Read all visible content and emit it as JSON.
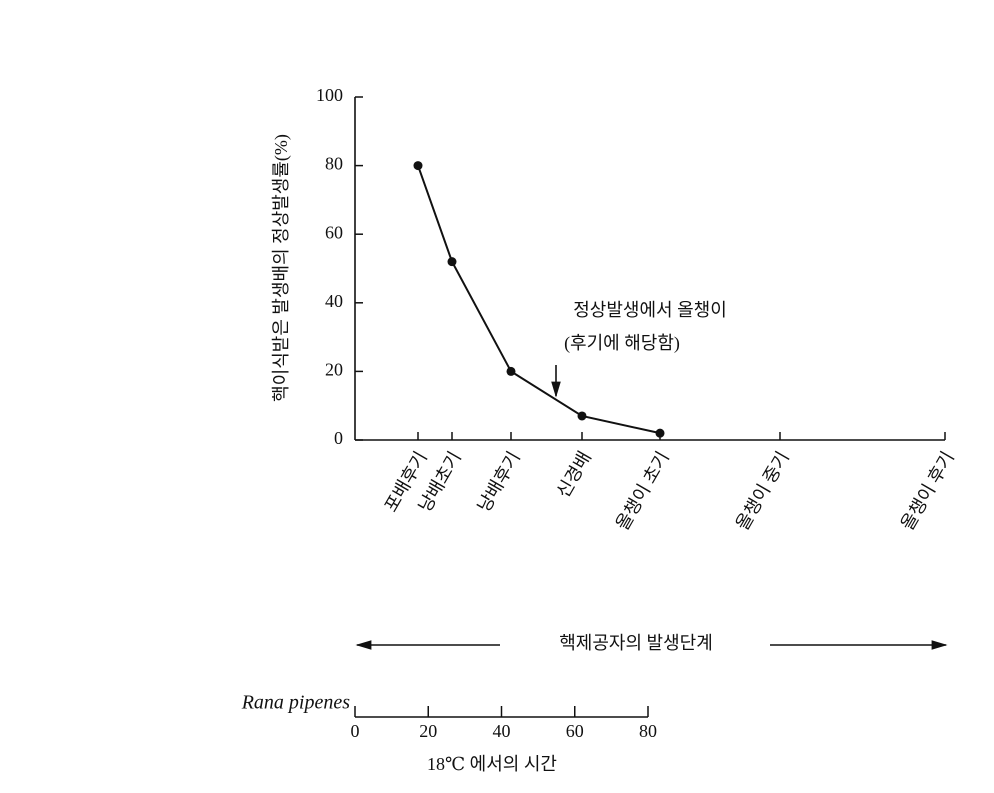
{
  "chart_data": {
    "type": "line",
    "ylabel": "핵이식받은 발생배의 정상발생률(%)",
    "categories": [
      "포배후기",
      "낭배초기",
      "낭배후기",
      "신경배",
      "올챙이 초기",
      "올챙이 중기",
      "올챙이 후기"
    ],
    "values": [
      80,
      52,
      20,
      7,
      2,
      null,
      null
    ],
    "color": "#111111",
    "ylim": [
      0,
      100
    ],
    "yticks": [
      0,
      20,
      40,
      60,
      80,
      100
    ],
    "xlabel": "핵제공자의 발생단계",
    "annotation": [
      "정상발생에서 올챙이",
      "(후기에 해당함)"
    ],
    "x2name": "Rana pipenes",
    "x2label": "18℃ 에서의 시간",
    "x2lim": [
      0,
      80
    ],
    "x2ticks": [
      0,
      20,
      40,
      60,
      80
    ]
  }
}
